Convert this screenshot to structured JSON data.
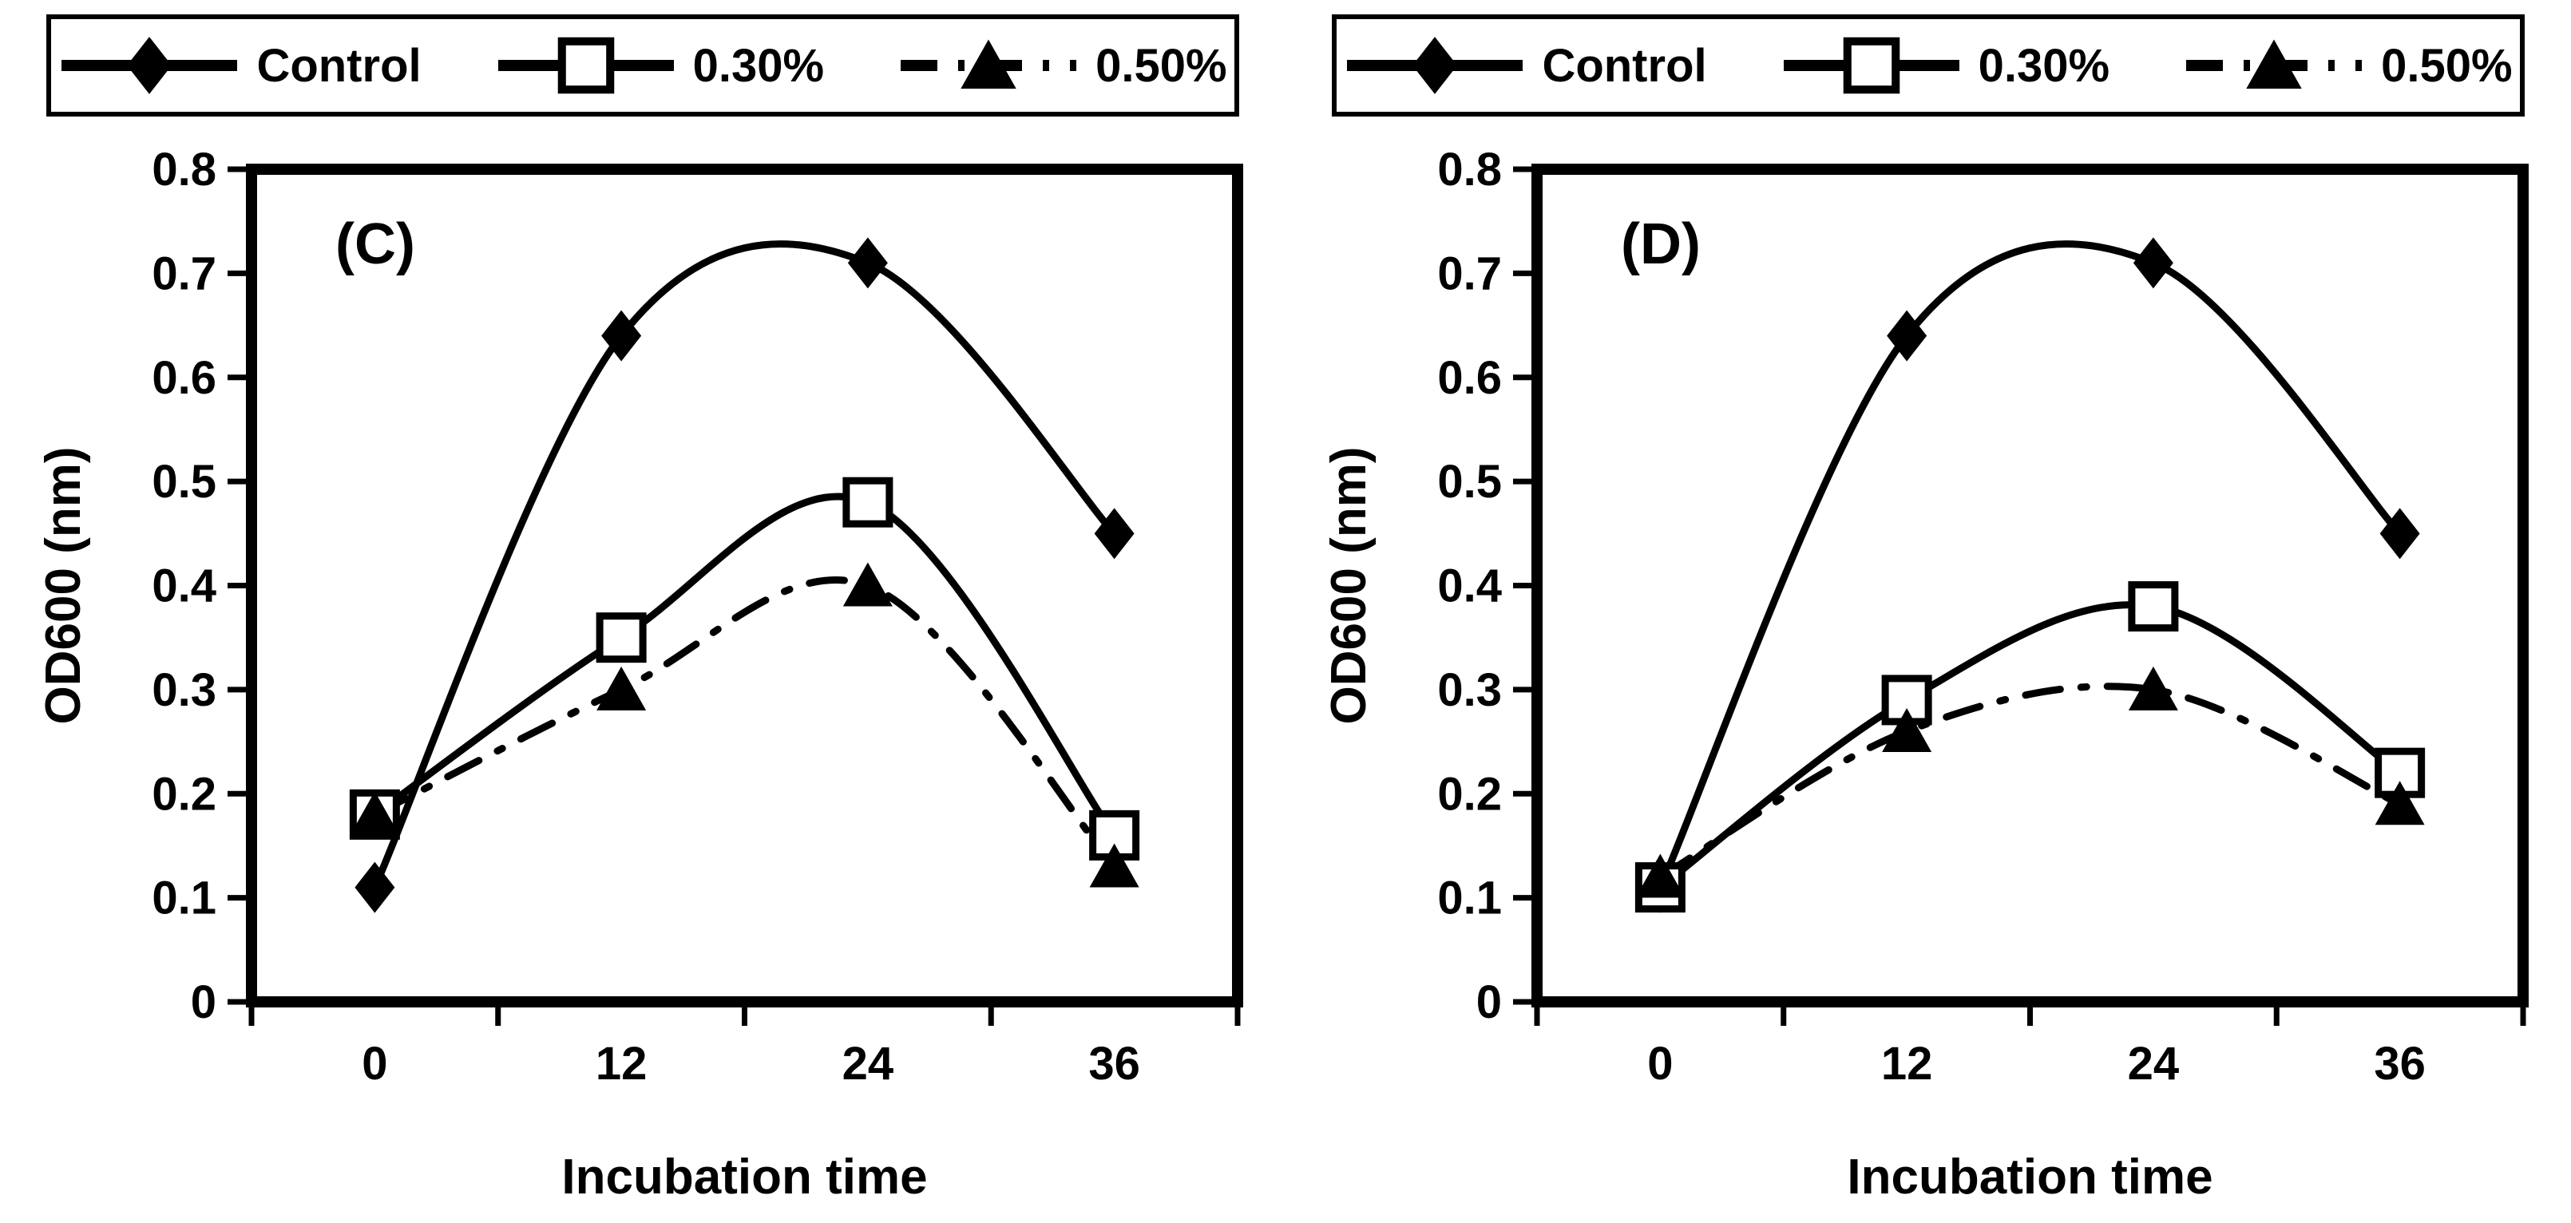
{
  "figure": {
    "background": "#ffffff",
    "ink_color": "#000000",
    "panel_labels": [
      "(C)",
      "(D)"
    ]
  },
  "legend": {
    "entries": [
      {
        "label": "Control",
        "marker": "filled-diamond",
        "line": "solid"
      },
      {
        "label": "0.30%",
        "marker": "open-square",
        "line": "solid"
      },
      {
        "label": "0.50%",
        "marker": "filled-triangle",
        "line": "dash-dot"
      }
    ]
  },
  "chart_data": [
    {
      "type": "line",
      "panel_label": "(C)",
      "title": "",
      "xlabel": "Incubation time",
      "ylabel": "OD600 (nm)",
      "x_categories": [
        "0",
        "12",
        "24",
        "36"
      ],
      "ylim": [
        0,
        0.8
      ],
      "ytick_step": 0.1,
      "ytick_labels": [
        "0",
        "0.1",
        "0.2",
        "0.3",
        "0.4",
        "0.5",
        "0.6",
        "0.7",
        "0.8"
      ],
      "grid": false,
      "legend_position": "top",
      "series": [
        {
          "name": "Control",
          "marker": "filled-diamond",
          "line": "solid",
          "values": [
            0.11,
            0.64,
            0.71,
            0.45
          ]
        },
        {
          "name": "0.30%",
          "marker": "open-square",
          "line": "solid",
          "values": [
            0.18,
            0.35,
            0.48,
            0.16
          ]
        },
        {
          "name": "0.50%",
          "marker": "filled-triangle",
          "line": "dash-dot",
          "values": [
            0.18,
            0.3,
            0.4,
            0.13
          ]
        }
      ]
    },
    {
      "type": "line",
      "panel_label": "(D)",
      "title": "",
      "xlabel": "Incubation time",
      "ylabel": "OD600 (nm)",
      "x_categories": [
        "0",
        "12",
        "24",
        "36"
      ],
      "ylim": [
        0,
        0.8
      ],
      "ytick_step": 0.1,
      "ytick_labels": [
        "0",
        "0.1",
        "0.2",
        "0.3",
        "0.4",
        "0.5",
        "0.6",
        "0.7",
        "0.8"
      ],
      "grid": false,
      "legend_position": "top",
      "series": [
        {
          "name": "Control",
          "marker": "filled-diamond",
          "line": "solid",
          "values": [
            0.11,
            0.64,
            0.71,
            0.45
          ]
        },
        {
          "name": "0.30%",
          "marker": "open-square",
          "line": "solid",
          "values": [
            0.11,
            0.29,
            0.38,
            0.22
          ]
        },
        {
          "name": "0.50%",
          "marker": "filled-triangle",
          "line": "dash-dot",
          "values": [
            0.12,
            0.26,
            0.3,
            0.19
          ]
        }
      ]
    }
  ]
}
